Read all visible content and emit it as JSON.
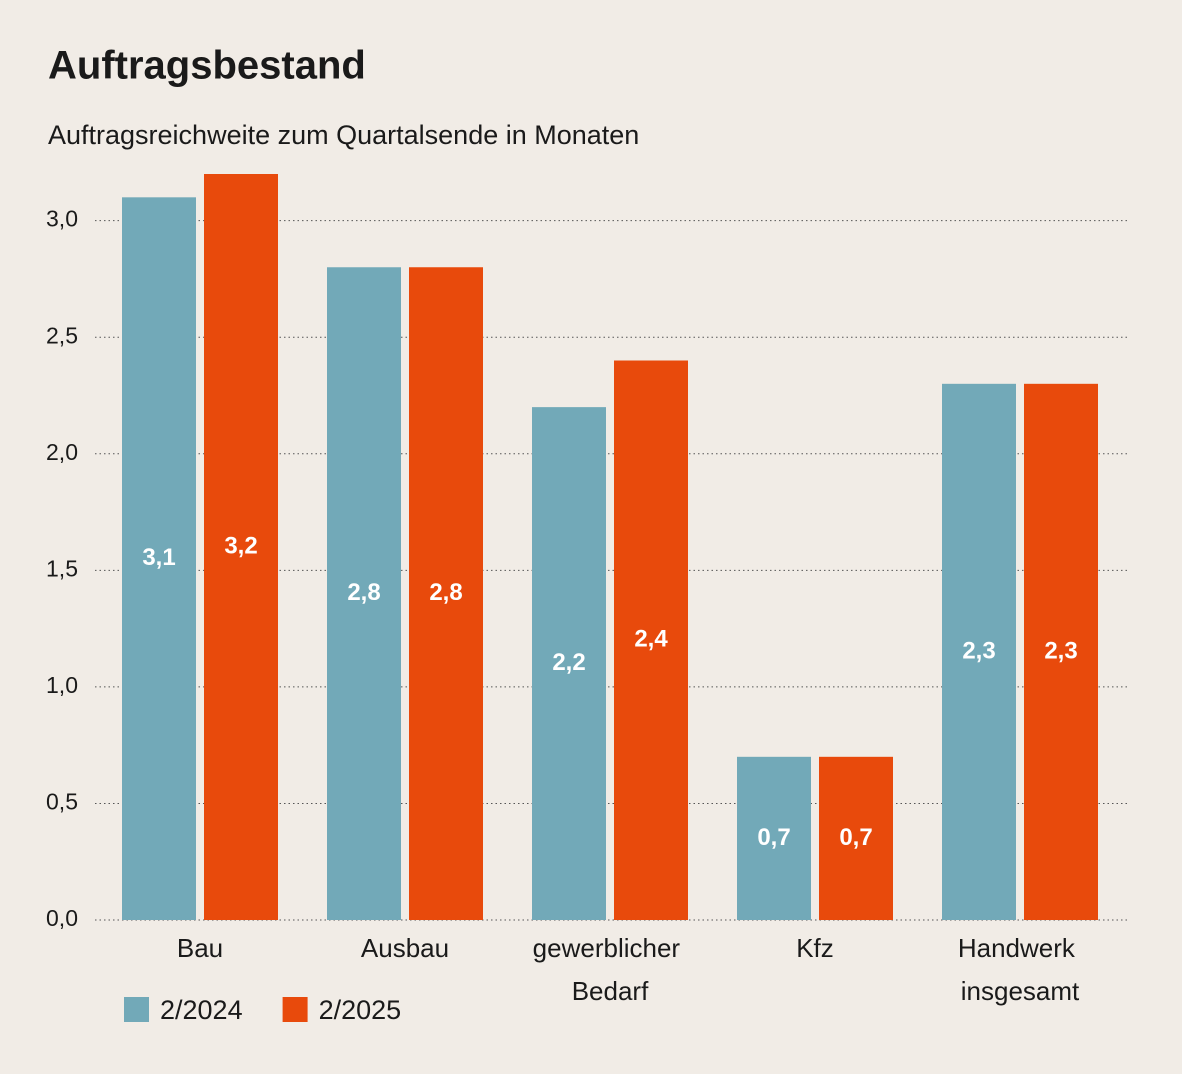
{
  "chart_data": {
    "type": "bar",
    "title": "Auftragsbestand",
    "subtitle": "Auftragsreichweite zum Quartalsende in Monaten",
    "categories": [
      "Bau",
      "Ausbau",
      "gewerblicher Bedarf",
      "Kfz",
      "Handwerk insgesamt"
    ],
    "series": [
      {
        "name": "2/2024",
        "color": "#72a9b8",
        "values": [
          3.1,
          2.8,
          2.2,
          0.7,
          2.3
        ],
        "value_labels": [
          "3,1",
          "2,8",
          "2,2",
          "0,7",
          "2,3"
        ]
      },
      {
        "name": "2/2025",
        "color": "#e84a0c",
        "values": [
          3.2,
          2.8,
          2.4,
          0.7,
          2.3
        ],
        "value_labels": [
          "3,2",
          "2,8",
          "2,4",
          "0,7",
          "2,3"
        ]
      }
    ],
    "ylim": [
      0,
      3.2
    ],
    "yticks": [
      {
        "value": 0,
        "label": "0,0"
      },
      {
        "value": 0.5,
        "label": "0,5"
      },
      {
        "value": 1,
        "label": "1,0"
      },
      {
        "value": 1.5,
        "label": "1,5"
      },
      {
        "value": 2,
        "label": "2,0"
      },
      {
        "value": 2.5,
        "label": "2,5"
      },
      {
        "value": 3,
        "label": "3,0"
      }
    ],
    "grid": true
  }
}
